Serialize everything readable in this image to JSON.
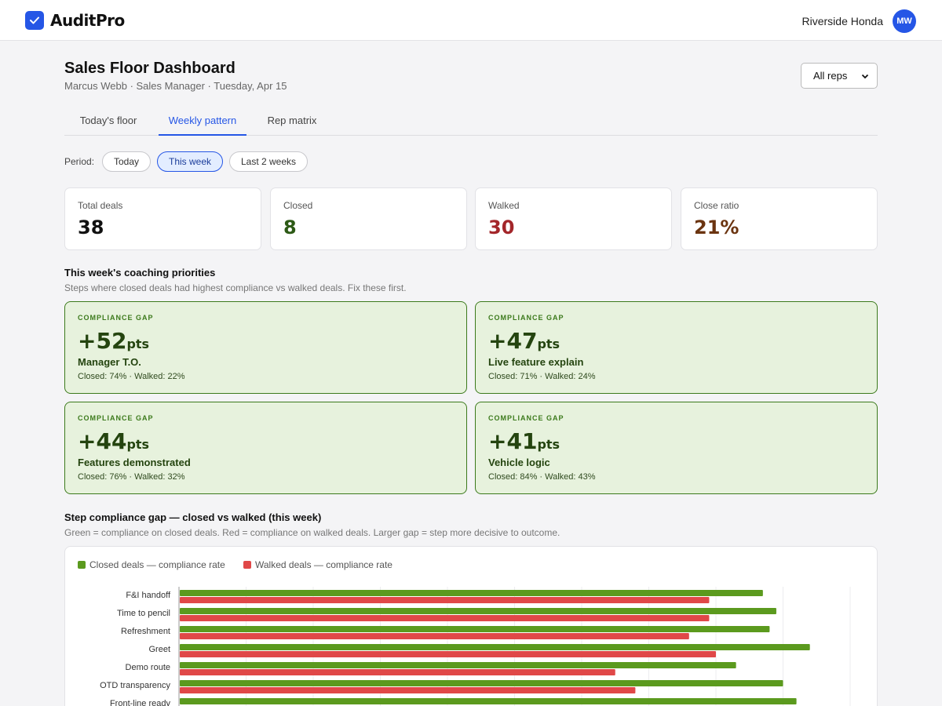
{
  "app": {
    "name": "AuditPro",
    "dealer": "Riverside Honda",
    "user_initials": "MW"
  },
  "page": {
    "title": "Sales Floor Dashboard",
    "subtitle": "Marcus Webb · Sales Manager · Tuesday, Apr 15",
    "rep_filter": "All reps"
  },
  "tabs": [
    {
      "label": "Today's floor",
      "active": false
    },
    {
      "label": "Weekly pattern",
      "active": true
    },
    {
      "label": "Rep matrix",
      "active": false
    }
  ],
  "period": {
    "label": "Period:",
    "options": [
      {
        "label": "Today",
        "active": false
      },
      {
        "label": "This week",
        "active": true
      },
      {
        "label": "Last 2 weeks",
        "active": false
      }
    ]
  },
  "stats": [
    {
      "label": "Total deals",
      "value": "38",
      "color": "#111111"
    },
    {
      "label": "Closed",
      "value": "8",
      "color": "#2d5a16"
    },
    {
      "label": "Walked",
      "value": "30",
      "color": "#a3262a"
    },
    {
      "label": "Close ratio",
      "value": "21%",
      "color": "#6b3410"
    }
  ],
  "priorities": {
    "title": "This week's coaching priorities",
    "subtitle": "Steps where closed deals had highest compliance vs walked deals. Fix these first.",
    "cards": [
      {
        "kicker": "COMPLIANCE GAP",
        "gap": "+52",
        "unit": "pts",
        "step": "Manager T.O.",
        "detail": "Closed: 74% · Walked: 22%"
      },
      {
        "kicker": "COMPLIANCE GAP",
        "gap": "+47",
        "unit": "pts",
        "step": "Live feature explain",
        "detail": "Closed: 71% · Walked: 24%"
      },
      {
        "kicker": "COMPLIANCE GAP",
        "gap": "+44",
        "unit": "pts",
        "step": "Features demonstrated",
        "detail": "Closed: 76% · Walked: 32%"
      },
      {
        "kicker": "COMPLIANCE GAP",
        "gap": "+41",
        "unit": "pts",
        "step": "Vehicle logic",
        "detail": "Closed: 84% · Walked: 43%"
      }
    ]
  },
  "gap_chart": {
    "title": "Step compliance gap — closed vs walked (this week)",
    "subtitle": "Green = compliance on closed deals. Red = compliance on walked deals. Larger gap = step more decisive to outcome."
  },
  "chart_data": {
    "type": "bar",
    "orientation": "horizontal",
    "categories": [
      "F&I handoff",
      "Time to pencil",
      "Refreshment",
      "Greet",
      "Demo route",
      "OTD transparency",
      "Front-line ready"
    ],
    "series": [
      {
        "name": "Closed deals — compliance rate",
        "color": "#5b9a1e",
        "values": [
          87,
          89,
          88,
          94,
          83,
          90,
          92
        ]
      },
      {
        "name": "Walked deals — compliance rate",
        "color": "#e04848",
        "values": [
          79,
          79,
          76,
          80,
          65,
          68,
          0
        ]
      }
    ],
    "xlim": [
      0,
      100
    ],
    "grid": true,
    "legend": "top-left"
  }
}
